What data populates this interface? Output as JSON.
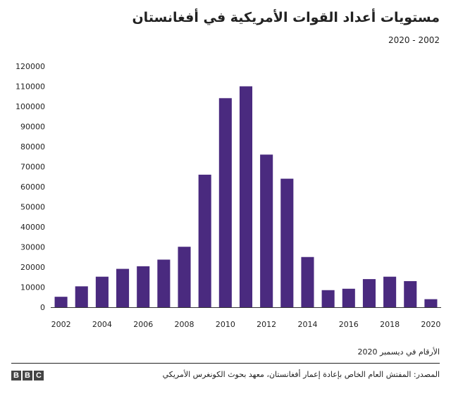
{
  "header": {
    "title": "مستويات أعداد القوات الأمريكية في أفغانستان",
    "subtitle": "2020 - 2002"
  },
  "footer": {
    "note": "الأرقام في ديسمبر 2020",
    "source": "المصدر: المفتش العام الخاص بإعادة إعمار أفغانستان، معهد بحوث الكونغرس الأمريكي",
    "logo_letters": [
      "B",
      "B",
      "C"
    ]
  },
  "colors": {
    "bar": "#4a2a7f",
    "axis": "#333333",
    "text": "#222222"
  },
  "chart_data": {
    "type": "bar",
    "title": "مستويات أعداد القوات الأمريكية في أفغانستان",
    "subtitle": "2020 - 2002",
    "categories": [
      "2002",
      "2003",
      "2004",
      "2005",
      "2006",
      "2007",
      "2008",
      "2009",
      "2010",
      "2011",
      "2012",
      "2013",
      "2014",
      "2015",
      "2016",
      "2017",
      "2018",
      "2019",
      "2020"
    ],
    "values": [
      5200,
      10400,
      15200,
      19100,
      20400,
      23700,
      30100,
      66000,
      104100,
      110000,
      76000,
      64000,
      25000,
      8500,
      9200,
      14000,
      15200,
      13000,
      4000
    ],
    "x_tick_labels": [
      "2002",
      "2004",
      "2006",
      "2008",
      "2010",
      "2012",
      "2014",
      "2016",
      "2018",
      "2020"
    ],
    "y_ticks": [
      0,
      10000,
      20000,
      30000,
      40000,
      50000,
      60000,
      70000,
      80000,
      90000,
      100000,
      110000,
      120000
    ],
    "ylim": [
      0,
      120000
    ],
    "xlabel": "",
    "ylabel": "",
    "grid": false,
    "legend": "none"
  }
}
